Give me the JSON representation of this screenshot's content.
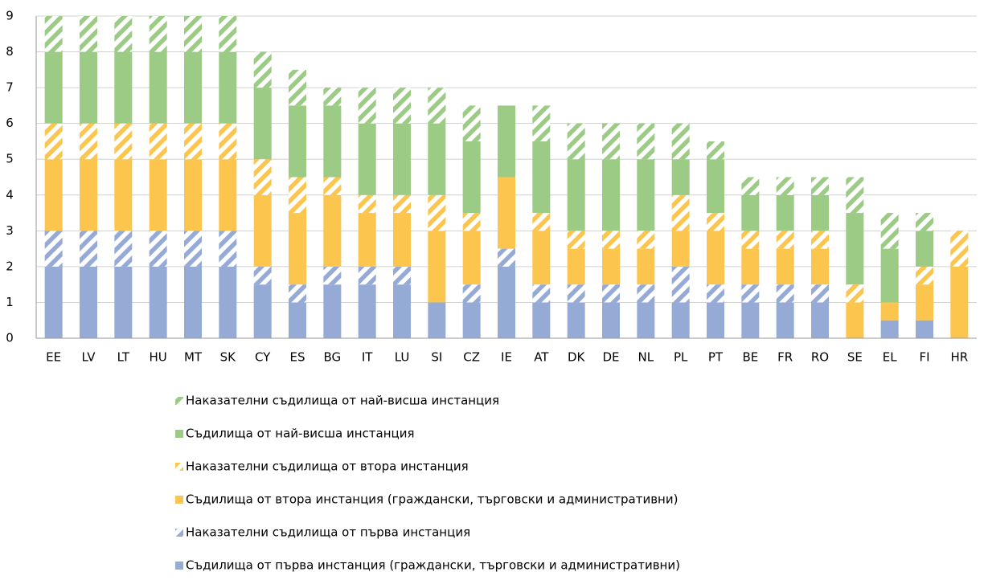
{
  "chart_data": {
    "type": "stacked_bar",
    "categories": [
      "EE",
      "LV",
      "LT",
      "HU",
      "MT",
      "SK",
      "CY",
      "ES",
      "BG",
      "IT",
      "LU",
      "SI",
      "CZ",
      "IE",
      "AT",
      "DK",
      "DE",
      "NL",
      "PL",
      "PT",
      "BE",
      "FR",
      "RO",
      "SE",
      "EL",
      "FI",
      "HR"
    ],
    "series": [
      {
        "name": "Съдилища от първа инстанция (граждански, търговски и административни)",
        "color": "#95abd6",
        "pattern": "solid",
        "values": [
          2,
          2,
          2,
          2,
          2,
          2,
          1.5,
          1,
          1.5,
          1.5,
          1.5,
          1,
          1,
          2,
          1,
          1,
          1,
          1,
          1,
          1,
          1,
          1,
          1,
          0,
          0.5,
          0.5,
          0
        ]
      },
      {
        "name": "Наказателни съдилища от първа инстанция",
        "color": "#95abd6",
        "pattern": "hatched",
        "values": [
          1,
          1,
          1,
          1,
          1,
          1,
          0.5,
          0.5,
          0.5,
          0.5,
          0.5,
          0,
          0.5,
          0.5,
          0.5,
          0.5,
          0.5,
          0.5,
          1,
          0.5,
          0.5,
          0.5,
          0.5,
          0,
          0,
          0,
          0
        ]
      },
      {
        "name": "Съдилища от втора инстанция (граждански, търговски и административни)",
        "color": "#fcc54e",
        "pattern": "solid",
        "values": [
          2,
          2,
          2,
          2,
          2,
          2,
          2,
          2,
          2,
          1.5,
          1.5,
          2,
          1.5,
          2,
          1.5,
          1,
          1,
          1,
          1,
          1.5,
          1,
          1,
          1,
          1,
          0.5,
          1,
          2
        ]
      },
      {
        "name": "Наказателни съдилища от втора инстанция",
        "color": "#fcc54e",
        "pattern": "hatched",
        "values": [
          1,
          1,
          1,
          1,
          1,
          1,
          1,
          1,
          0.5,
          0.5,
          0.5,
          1,
          0.5,
          0,
          0.5,
          0.5,
          0.5,
          0.5,
          1,
          0.5,
          0.5,
          0.5,
          0.5,
          0.5,
          0,
          0.5,
          1
        ]
      },
      {
        "name": "Съдилища от най-висша инстанция",
        "color": "#9ccb86",
        "pattern": "solid",
        "values": [
          2,
          2,
          2,
          2,
          2,
          2,
          2,
          2,
          2,
          2,
          2,
          2,
          2,
          2,
          2,
          2,
          2,
          2,
          1,
          1.5,
          1,
          1,
          1,
          2,
          1.5,
          1,
          0
        ]
      },
      {
        "name": "Наказателни съдилища от най-висша инстанция",
        "color": "#9ccb86",
        "pattern": "hatched",
        "values": [
          1,
          1,
          1,
          1,
          1,
          1,
          1,
          1,
          0.5,
          1,
          1,
          1,
          1,
          0,
          1,
          1,
          1,
          1,
          1,
          0.5,
          0.5,
          0.5,
          0.5,
          1,
          1,
          0.5,
          0
        ]
      }
    ],
    "ylim": [
      0,
      9
    ],
    "yticks": [
      0,
      1,
      2,
      3,
      4,
      5,
      6,
      7,
      8,
      9
    ],
    "grid": true
  }
}
